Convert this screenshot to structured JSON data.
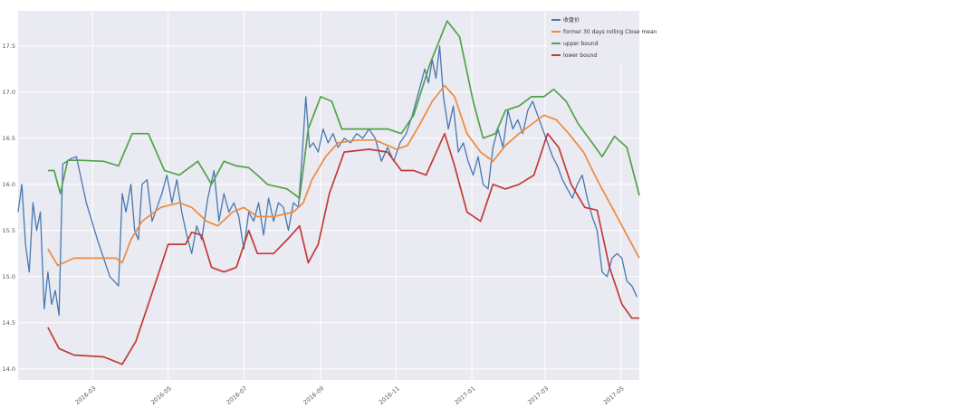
{
  "chart_data": {
    "type": "line",
    "title": "",
    "xlabel": "",
    "ylabel": "",
    "x_range": [
      "2016-01-01",
      "2017-05-16"
    ],
    "ylim": [
      13.88,
      17.88
    ],
    "grid": true,
    "legend_position": "top-right",
    "y_ticks": [
      "14.0",
      "14.5",
      "15.0",
      "15.5",
      "16.0",
      "16.5",
      "17.0",
      "17.5"
    ],
    "x_ticks": [
      {
        "date": "2016-03-01",
        "label": "2016-03"
      },
      {
        "date": "2016-05-01",
        "label": "2016-05"
      },
      {
        "date": "2016-07-01",
        "label": "2016-07"
      },
      {
        "date": "2016-09-01",
        "label": "2016-09"
      },
      {
        "date": "2016-11-01",
        "label": "2016-11"
      },
      {
        "date": "2017-01-01",
        "label": "2017-01"
      },
      {
        "date": "2017-03-01",
        "label": "2017-03"
      },
      {
        "date": "2017-05-01",
        "label": "2017-05"
      }
    ],
    "series": [
      {
        "name": "收盘价",
        "color": "#4878b0",
        "points": [
          [
            "2016-01-01",
            15.7
          ],
          [
            "2016-01-04",
            16.0
          ],
          [
            "2016-01-07",
            15.35
          ],
          [
            "2016-01-10",
            15.05
          ],
          [
            "2016-01-13",
            15.8
          ],
          [
            "2016-01-16",
            15.5
          ],
          [
            "2016-01-19",
            15.7
          ],
          [
            "2016-01-22",
            14.65
          ],
          [
            "2016-01-25",
            15.05
          ],
          [
            "2016-01-28",
            14.7
          ],
          [
            "2016-01-31",
            14.85
          ],
          [
            "2016-02-03",
            14.58
          ],
          [
            "2016-02-06",
            16.22
          ],
          [
            "2016-02-13",
            16.28
          ],
          [
            "2016-02-17",
            16.3
          ],
          [
            "2016-02-25",
            15.8
          ],
          [
            "2016-03-05",
            15.4
          ],
          [
            "2016-03-15",
            15.0
          ],
          [
            "2016-03-22",
            14.9
          ],
          [
            "2016-03-25",
            15.9
          ],
          [
            "2016-03-28",
            15.7
          ],
          [
            "2016-04-01",
            16.0
          ],
          [
            "2016-04-04",
            15.5
          ],
          [
            "2016-04-07",
            15.4
          ],
          [
            "2016-04-10",
            16.0
          ],
          [
            "2016-04-14",
            16.05
          ],
          [
            "2016-04-18",
            15.6
          ],
          [
            "2016-04-22",
            15.75
          ],
          [
            "2016-04-26",
            15.9
          ],
          [
            "2016-04-30",
            16.1
          ],
          [
            "2016-05-04",
            15.8
          ],
          [
            "2016-05-08",
            16.05
          ],
          [
            "2016-05-12",
            15.7
          ],
          [
            "2016-05-16",
            15.45
          ],
          [
            "2016-05-20",
            15.25
          ],
          [
            "2016-05-24",
            15.55
          ],
          [
            "2016-05-28",
            15.4
          ],
          [
            "2016-06-02",
            15.85
          ],
          [
            "2016-06-07",
            16.15
          ],
          [
            "2016-06-11",
            15.6
          ],
          [
            "2016-06-15",
            15.9
          ],
          [
            "2016-06-19",
            15.7
          ],
          [
            "2016-06-23",
            15.8
          ],
          [
            "2016-06-27",
            15.65
          ],
          [
            "2016-07-01",
            15.3
          ],
          [
            "2016-07-05",
            15.7
          ],
          [
            "2016-07-09",
            15.6
          ],
          [
            "2016-07-13",
            15.8
          ],
          [
            "2016-07-17",
            15.45
          ],
          [
            "2016-07-21",
            15.85
          ],
          [
            "2016-07-25",
            15.6
          ],
          [
            "2016-07-29",
            15.8
          ],
          [
            "2016-08-02",
            15.75
          ],
          [
            "2016-08-06",
            15.5
          ],
          [
            "2016-08-10",
            15.8
          ],
          [
            "2016-08-14",
            15.75
          ],
          [
            "2016-08-17",
            16.3
          ],
          [
            "2016-08-20",
            16.95
          ],
          [
            "2016-08-23",
            16.4
          ],
          [
            "2016-08-26",
            16.45
          ],
          [
            "2016-08-30",
            16.35
          ],
          [
            "2016-09-03",
            16.6
          ],
          [
            "2016-09-07",
            16.45
          ],
          [
            "2016-09-11",
            16.55
          ],
          [
            "2016-09-15",
            16.4
          ],
          [
            "2016-09-20",
            16.5
          ],
          [
            "2016-09-25",
            16.45
          ],
          [
            "2016-09-30",
            16.55
          ],
          [
            "2016-10-05",
            16.5
          ],
          [
            "2016-10-10",
            16.6
          ],
          [
            "2016-10-15",
            16.5
          ],
          [
            "2016-10-20",
            16.25
          ],
          [
            "2016-10-25",
            16.4
          ],
          [
            "2016-10-30",
            16.25
          ],
          [
            "2016-11-04",
            16.45
          ],
          [
            "2016-11-09",
            16.55
          ],
          [
            "2016-11-14",
            16.75
          ],
          [
            "2016-11-19",
            17.0
          ],
          [
            "2016-11-24",
            17.25
          ],
          [
            "2016-11-27",
            17.1
          ],
          [
            "2016-11-30",
            17.35
          ],
          [
            "2016-12-03",
            17.15
          ],
          [
            "2016-12-06",
            17.5
          ],
          [
            "2016-12-09",
            16.95
          ],
          [
            "2016-12-13",
            16.6
          ],
          [
            "2016-12-17",
            16.85
          ],
          [
            "2016-12-21",
            16.35
          ],
          [
            "2016-12-25",
            16.45
          ],
          [
            "2016-12-29",
            16.25
          ],
          [
            "2017-01-02",
            16.1
          ],
          [
            "2017-01-06",
            16.3
          ],
          [
            "2017-01-10",
            16.0
          ],
          [
            "2017-01-14",
            15.95
          ],
          [
            "2017-01-18",
            16.4
          ],
          [
            "2017-01-22",
            16.6
          ],
          [
            "2017-01-26",
            16.4
          ],
          [
            "2017-01-30",
            16.8
          ],
          [
            "2017-02-03",
            16.6
          ],
          [
            "2017-02-07",
            16.7
          ],
          [
            "2017-02-11",
            16.55
          ],
          [
            "2017-02-15",
            16.8
          ],
          [
            "2017-02-19",
            16.9
          ],
          [
            "2017-02-23",
            16.75
          ],
          [
            "2017-02-27",
            16.6
          ],
          [
            "2017-03-03",
            16.45
          ],
          [
            "2017-03-07",
            16.3
          ],
          [
            "2017-03-11",
            16.2
          ],
          [
            "2017-03-15",
            16.05
          ],
          [
            "2017-03-19",
            15.95
          ],
          [
            "2017-03-23",
            15.85
          ],
          [
            "2017-03-27",
            16.0
          ],
          [
            "2017-03-31",
            16.1
          ],
          [
            "2017-04-04",
            15.85
          ],
          [
            "2017-04-08",
            15.65
          ],
          [
            "2017-04-12",
            15.5
          ],
          [
            "2017-04-16",
            15.05
          ],
          [
            "2017-04-20",
            15.0
          ],
          [
            "2017-04-24",
            15.2
          ],
          [
            "2017-04-28",
            15.25
          ],
          [
            "2017-05-02",
            15.2
          ],
          [
            "2017-05-06",
            14.95
          ],
          [
            "2017-05-10",
            14.9
          ],
          [
            "2017-05-14",
            14.78
          ]
        ]
      },
      {
        "name": "former 30 days rolling Close mean",
        "color": "#ee8a3c",
        "points": [
          [
            "2016-01-25",
            15.3
          ],
          [
            "2016-02-02",
            15.12
          ],
          [
            "2016-02-15",
            15.2
          ],
          [
            "2016-03-01",
            15.2
          ],
          [
            "2016-03-20",
            15.2
          ],
          [
            "2016-03-25",
            15.15
          ],
          [
            "2016-04-01",
            15.4
          ],
          [
            "2016-04-10",
            15.6
          ],
          [
            "2016-04-25",
            15.75
          ],
          [
            "2016-05-10",
            15.8
          ],
          [
            "2016-05-20",
            15.75
          ],
          [
            "2016-06-01",
            15.6
          ],
          [
            "2016-06-10",
            15.55
          ],
          [
            "2016-06-22",
            15.7
          ],
          [
            "2016-07-01",
            15.75
          ],
          [
            "2016-07-12",
            15.65
          ],
          [
            "2016-07-25",
            15.65
          ],
          [
            "2016-08-10",
            15.7
          ],
          [
            "2016-08-18",
            15.8
          ],
          [
            "2016-08-25",
            16.05
          ],
          [
            "2016-09-05",
            16.3
          ],
          [
            "2016-09-15",
            16.45
          ],
          [
            "2016-10-01",
            16.48
          ],
          [
            "2016-10-15",
            16.48
          ],
          [
            "2016-11-01",
            16.38
          ],
          [
            "2016-11-10",
            16.42
          ],
          [
            "2016-11-20",
            16.65
          ],
          [
            "2016-11-30",
            16.9
          ],
          [
            "2016-12-10",
            17.07
          ],
          [
            "2016-12-18",
            16.95
          ],
          [
            "2016-12-28",
            16.55
          ],
          [
            "2017-01-08",
            16.35
          ],
          [
            "2017-01-18",
            16.25
          ],
          [
            "2017-01-28",
            16.42
          ],
          [
            "2017-02-08",
            16.55
          ],
          [
            "2017-02-18",
            16.65
          ],
          [
            "2017-02-28",
            16.75
          ],
          [
            "2017-03-10",
            16.7
          ],
          [
            "2017-03-20",
            16.55
          ],
          [
            "2017-04-01",
            16.35
          ],
          [
            "2017-04-12",
            16.05
          ],
          [
            "2017-04-24",
            15.75
          ],
          [
            "2017-05-04",
            15.5
          ],
          [
            "2017-05-16",
            15.2
          ]
        ]
      },
      {
        "name": "upper bound",
        "color": "#52a24a",
        "points": [
          [
            "2016-01-25",
            16.15
          ],
          [
            "2016-01-30",
            16.15
          ],
          [
            "2016-02-04",
            15.9
          ],
          [
            "2016-02-10",
            16.26
          ],
          [
            "2016-02-20",
            16.26
          ],
          [
            "2016-03-10",
            16.25
          ],
          [
            "2016-03-22",
            16.2
          ],
          [
            "2016-04-02",
            16.55
          ],
          [
            "2016-04-15",
            16.55
          ],
          [
            "2016-04-28",
            16.15
          ],
          [
            "2016-05-10",
            16.1
          ],
          [
            "2016-05-25",
            16.25
          ],
          [
            "2016-06-05",
            16.0
          ],
          [
            "2016-06-15",
            16.25
          ],
          [
            "2016-06-25",
            16.2
          ],
          [
            "2016-07-05",
            16.18
          ],
          [
            "2016-07-12",
            16.1
          ],
          [
            "2016-07-20",
            16.0
          ],
          [
            "2016-08-05",
            15.95
          ],
          [
            "2016-08-15",
            15.85
          ],
          [
            "2016-08-22",
            16.6
          ],
          [
            "2016-09-01",
            16.95
          ],
          [
            "2016-09-10",
            16.9
          ],
          [
            "2016-09-18",
            16.6
          ],
          [
            "2016-10-10",
            16.6
          ],
          [
            "2016-10-25",
            16.6
          ],
          [
            "2016-11-05",
            16.55
          ],
          [
            "2016-11-15",
            16.75
          ],
          [
            "2016-11-28",
            17.3
          ],
          [
            "2016-12-12",
            17.77
          ],
          [
            "2016-12-22",
            17.6
          ],
          [
            "2017-01-02",
            16.9
          ],
          [
            "2017-01-10",
            16.5
          ],
          [
            "2017-01-20",
            16.55
          ],
          [
            "2017-01-28",
            16.8
          ],
          [
            "2017-02-08",
            16.85
          ],
          [
            "2017-02-18",
            16.95
          ],
          [
            "2017-02-28",
            16.95
          ],
          [
            "2017-03-08",
            17.03
          ],
          [
            "2017-03-18",
            16.9
          ],
          [
            "2017-03-28",
            16.65
          ],
          [
            "2017-04-08",
            16.45
          ],
          [
            "2017-04-16",
            16.3
          ],
          [
            "2017-04-26",
            16.52
          ],
          [
            "2017-05-06",
            16.4
          ],
          [
            "2017-05-16",
            15.88
          ]
        ]
      },
      {
        "name": "lower bound",
        "color": "#c23b36",
        "points": [
          [
            "2016-01-25",
            14.45
          ],
          [
            "2016-02-03",
            14.22
          ],
          [
            "2016-02-15",
            14.15
          ],
          [
            "2016-03-10",
            14.13
          ],
          [
            "2016-03-25",
            14.05
          ],
          [
            "2016-04-05",
            14.3
          ],
          [
            "2016-04-20",
            14.9
          ],
          [
            "2016-05-01",
            15.35
          ],
          [
            "2016-05-15",
            15.35
          ],
          [
            "2016-05-20",
            15.48
          ],
          [
            "2016-05-28",
            15.45
          ],
          [
            "2016-06-05",
            15.1
          ],
          [
            "2016-06-15",
            15.05
          ],
          [
            "2016-06-25",
            15.1
          ],
          [
            "2016-07-05",
            15.5
          ],
          [
            "2016-07-12",
            15.25
          ],
          [
            "2016-07-25",
            15.25
          ],
          [
            "2016-08-05",
            15.4
          ],
          [
            "2016-08-15",
            15.55
          ],
          [
            "2016-08-22",
            15.15
          ],
          [
            "2016-08-30",
            15.35
          ],
          [
            "2016-09-08",
            15.9
          ],
          [
            "2016-09-20",
            16.35
          ],
          [
            "2016-10-10",
            16.38
          ],
          [
            "2016-10-25",
            16.35
          ],
          [
            "2016-11-05",
            16.15
          ],
          [
            "2016-11-15",
            16.15
          ],
          [
            "2016-11-25",
            16.1
          ],
          [
            "2016-12-10",
            16.55
          ],
          [
            "2016-12-18",
            16.2
          ],
          [
            "2016-12-28",
            15.7
          ],
          [
            "2017-01-08",
            15.6
          ],
          [
            "2017-01-18",
            16.0
          ],
          [
            "2017-01-28",
            15.95
          ],
          [
            "2017-02-08",
            16.0
          ],
          [
            "2017-02-20",
            16.1
          ],
          [
            "2017-03-03",
            16.55
          ],
          [
            "2017-03-12",
            16.4
          ],
          [
            "2017-03-22",
            16.0
          ],
          [
            "2017-04-02",
            15.75
          ],
          [
            "2017-04-12",
            15.72
          ],
          [
            "2017-04-22",
            15.1
          ],
          [
            "2017-05-02",
            14.7
          ],
          [
            "2017-05-10",
            14.55
          ],
          [
            "2017-05-16",
            14.55
          ]
        ]
      }
    ]
  }
}
